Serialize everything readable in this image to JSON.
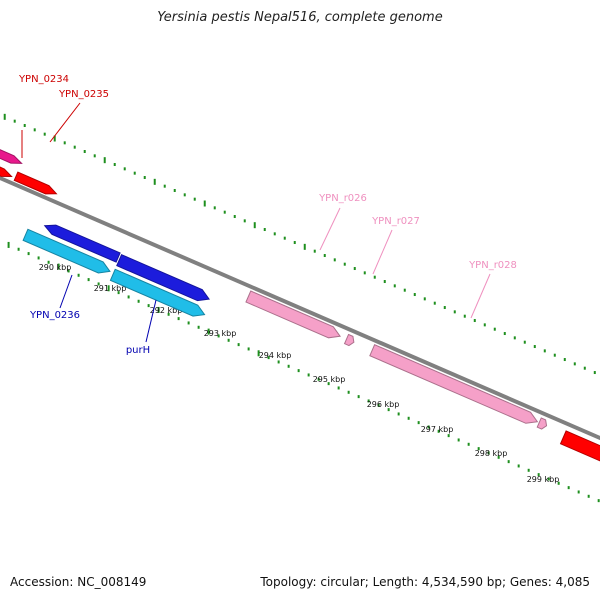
{
  "title": "Yersinia pestis Nepal516, complete genome",
  "footer": {
    "accession": "Accession: NC_008149",
    "stats": "Topology: circular; Length: 4,534,590 bp; Genes: 4,085"
  },
  "colors": {
    "backbone": "#808080",
    "ticks": "#1e8f1e",
    "gene_red": "#ff0000",
    "gene_magenta": "#e8198c",
    "gene_blue": "#1c1cdc",
    "gene_cyan": "#20bde8",
    "gene_pink": "#f5a0c8",
    "label_red": "#cc0000",
    "label_blue": "#0000b0",
    "label_pink": "#ef90bf"
  },
  "ticks": [
    {
      "label": "290 kbp"
    },
    {
      "label": "291 kbp"
    },
    {
      "label": "292 kbp"
    },
    {
      "label": "293 kbp"
    },
    {
      "label": "294 kbp"
    },
    {
      "label": "295 kbp"
    },
    {
      "label": "296 kbp"
    },
    {
      "label": "297 kbp"
    },
    {
      "label": "298 kbp"
    },
    {
      "label": "299 kbp"
    }
  ],
  "gene_labels": [
    {
      "text": "YPN_0234",
      "color": "label_red"
    },
    {
      "text": "YPN_0235",
      "color": "label_red"
    },
    {
      "text": "YPN_0236",
      "color": "label_blue"
    },
    {
      "text": "purH",
      "color": "label_blue"
    },
    {
      "text": "YPN_r026",
      "color": "label_pink"
    },
    {
      "text": "YPN_r027",
      "color": "label_pink"
    },
    {
      "text": "YPN_r028",
      "color": "label_pink"
    }
  ]
}
